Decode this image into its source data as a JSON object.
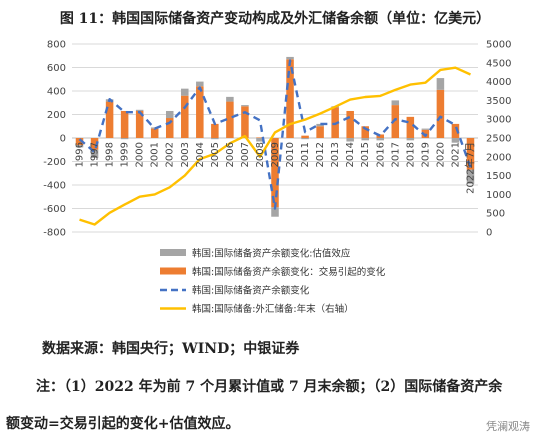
{
  "title": "图 11：韩国国际储备资产变动构成及外汇储备余额（单位：亿美元）",
  "source": "数据来源：韩国央行；WIND；中银证券",
  "note_line1": "注：（1）2022 年为前 7 个月累计值或 7 月末余额；（2）国际储备资产余",
  "note_line2": "额变动=交易引起的变化+估值效应。",
  "watermark": "凭澜观涛",
  "colors": {
    "valuation": "#a5a5a5",
    "transaction": "#ed7d31",
    "total_change": "#4472c4",
    "fx_reserves": "#ffc000"
  },
  "chart_data": {
    "type": "bar",
    "categories": [
      "1996",
      "1997",
      "1998",
      "1999",
      "2000",
      "2001",
      "2002",
      "2003",
      "2004",
      "2005",
      "2006",
      "2007",
      "2008",
      "2009",
      "2010",
      "2011",
      "2012",
      "2013",
      "2014",
      "2015",
      "2016",
      "2017",
      "2018",
      "2019",
      "2020",
      "2021",
      "2022年7月"
    ],
    "ylim_left": [
      -800,
      800
    ],
    "ylim_right": [
      0,
      5000
    ],
    "yticks_left": [
      "800",
      "600",
      "400",
      "200",
      "0",
      "-200",
      "-400",
      "-600",
      "-800"
    ],
    "yticks_right": [
      "5000",
      "4500",
      "4000",
      "3500",
      "3000",
      "2500",
      "2000",
      "1500",
      "1000",
      "500",
      "0"
    ],
    "series": [
      {
        "name": "韩国:国际储备资产余额变化:估值效应",
        "type": "bar",
        "values": [
          -20,
          -70,
          20,
          -10,
          10,
          10,
          60,
          60,
          40,
          -10,
          40,
          10,
          -30,
          -80,
          20,
          -10,
          20,
          10,
          -30,
          -20,
          -20,
          40,
          -20,
          10,
          100,
          -40,
          -120
        ]
      },
      {
        "name": "韩国:国际储备资产余额变化：交易引起的变化",
        "type": "bar",
        "values": [
          -60,
          -100,
          310,
          230,
          230,
          80,
          170,
          360,
          440,
          120,
          310,
          270,
          5,
          -590,
          670,
          20,
          100,
          260,
          230,
          100,
          30,
          280,
          180,
          70,
          410,
          120,
          -270
        ]
      },
      {
        "name": "韩国:国际储备资产余额变化",
        "type": "line",
        "values": [
          -10,
          -120,
          330,
          220,
          220,
          80,
          130,
          260,
          430,
          120,
          170,
          220,
          150,
          -600,
          660,
          50,
          120,
          120,
          180,
          80,
          20,
          160,
          130,
          20,
          180,
          110,
          -250
        ]
      },
      {
        "name": "韩国:国际储备:外汇储备:年末（右轴）",
        "type": "line",
        "axis": "right",
        "values": [
          330,
          200,
          510,
          730,
          940,
          1000,
          1190,
          1500,
          1940,
          2080,
          2360,
          2550,
          2000,
          2650,
          2870,
          2990,
          3150,
          3330,
          3520,
          3590,
          3620,
          3780,
          3920,
          3970,
          4310,
          4370,
          4190
        ]
      }
    ]
  }
}
